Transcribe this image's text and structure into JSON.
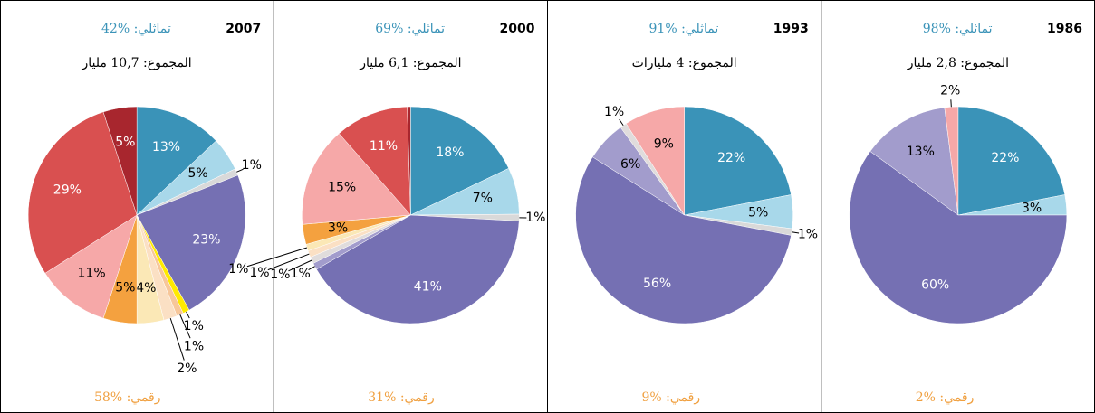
{
  "chart_data": [
    {
      "type": "pie",
      "title": "2007",
      "analog": "تماثلي: %42",
      "total": "المجموع: 10,7 مليار",
      "digital": "رقمي: %58",
      "values": [
        13,
        5,
        1,
        23,
        1,
        1,
        2,
        4,
        5,
        11,
        29,
        5
      ],
      "value_labels": [
        "13%",
        "5%",
        "1%",
        "23%",
        "1%",
        "1%",
        "2%",
        "4%",
        "5%",
        "11%",
        "29%",
        "5%"
      ],
      "colors": [
        "#3a93b8",
        "#a8d8ea",
        "#d9d9d9",
        "#7570b3",
        "#ffea00",
        "#f7c79a",
        "#fbe0c4",
        "#fbe8b6",
        "#f4a13f",
        "#f6a8a8",
        "#d95050",
        "#a8262e"
      ]
    },
    {
      "type": "pie",
      "title": "2000",
      "analog": "تماثلي: %69",
      "total": "المجموع: 6,1 مليار",
      "digital": "رقمي: %31",
      "values": [
        18,
        7,
        1,
        41,
        1,
        1,
        1,
        1,
        3,
        15,
        11,
        0.5
      ],
      "value_labels": [
        "18%",
        "7%",
        "1%",
        "41%",
        "1%",
        "1%",
        "1%",
        "1%",
        "3%",
        "15%",
        "11%",
        null
      ],
      "colors": [
        "#3a93b8",
        "#a8d8ea",
        "#d9d9d9",
        "#7570b3",
        "#a29ccc",
        "#e0dcdc",
        "#fbe0c4",
        "#fbe8b6",
        "#f4a13f",
        "#f6a8a8",
        "#d95050",
        "#a8262e"
      ]
    },
    {
      "type": "pie",
      "title": "1993",
      "analog": "تماثلي: %91",
      "total": "المجموع: 4 مليارات",
      "digital": "رقمي: %9",
      "values": [
        22,
        5,
        1,
        56,
        6,
        1,
        9
      ],
      "value_labels": [
        "22%",
        "5%",
        "1%",
        "56%",
        "6%",
        "1%",
        "9%"
      ],
      "colors": [
        "#3a93b8",
        "#a8d8ea",
        "#d9d9d9",
        "#7570b3",
        "#a29ccc",
        "#e0dcdc",
        "#f6a8a8"
      ]
    },
    {
      "type": "pie",
      "title": "1986",
      "analog": "تماثلي: %98",
      "total": "المجموع: 2,8 مليار",
      "digital": "رقمي: %2",
      "values": [
        22,
        3,
        60,
        13,
        2
      ],
      "value_labels": [
        "22%",
        "3%",
        "60%",
        "13%",
        "2%"
      ],
      "colors": [
        "#3a93b8",
        "#a8d8ea",
        "#7570b3",
        "#a29ccc",
        "#f6a8a8"
      ]
    }
  ]
}
